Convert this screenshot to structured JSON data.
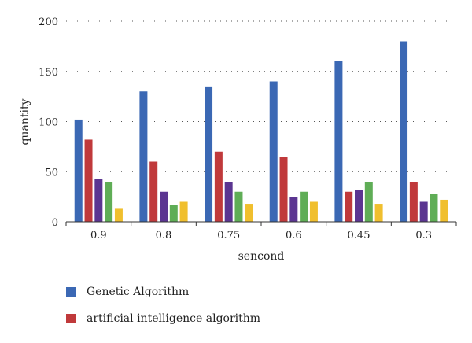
{
  "chart_data": {
    "type": "bar",
    "xlabel": "sencond",
    "ylabel": "quantity",
    "ylim": [
      0,
      200
    ],
    "yticks": [
      0,
      50,
      100,
      150,
      200
    ],
    "grid": "horizontal dotted",
    "legend_placement": "bottom-left",
    "categories": [
      "0.9",
      "0.8",
      "0.75",
      "0.6",
      "0.45",
      "0.3"
    ],
    "series": [
      {
        "name": "Genetic Algorithm",
        "color": "#3b68b4",
        "values": [
          102,
          130,
          135,
          140,
          160,
          180
        ]
      },
      {
        "name": "artificial intelligence algorithm",
        "color": "#c0393b",
        "values": [
          82,
          60,
          70,
          65,
          30,
          40
        ]
      },
      {
        "color": "#5b3591",
        "values": [
          43,
          30,
          40,
          25,
          32,
          20
        ]
      },
      {
        "color": "#5fad56",
        "values": [
          40,
          17,
          30,
          30,
          40,
          28
        ]
      },
      {
        "color": "#f0bf2e",
        "values": [
          13,
          20,
          18,
          20,
          18,
          22
        ]
      }
    ]
  }
}
